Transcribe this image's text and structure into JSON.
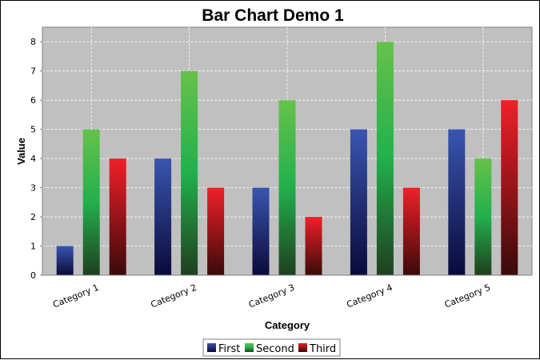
{
  "chart_data": {
    "type": "bar",
    "title": "Bar Chart Demo 1",
    "xlabel": "Category",
    "ylabel": "Value",
    "categories": [
      "Category 1",
      "Category 2",
      "Category 3",
      "Category 4",
      "Category 5"
    ],
    "series": [
      {
        "name": "First",
        "values": [
          1,
          4,
          3,
          5,
          5
        ],
        "color_top": "#3a55b0",
        "color_bottom": "#0a0a3a"
      },
      {
        "name": "Second",
        "values": [
          5,
          7,
          6,
          8,
          4
        ],
        "color_top": "#66c24a",
        "color_bottom": "#1f3f1f",
        "color_mid": "#22b04c"
      },
      {
        "name": "Third",
        "values": [
          4,
          3,
          2,
          3,
          6
        ],
        "color_top": "#f02028",
        "color_bottom": "#3a0a0a"
      }
    ],
    "ylim": [
      0,
      8.5
    ],
    "yticks": [
      0,
      1,
      2,
      3,
      4,
      5,
      6,
      7,
      8
    ],
    "grid": true,
    "plot_background": "#c0c0c0",
    "legend_position": "bottom"
  }
}
